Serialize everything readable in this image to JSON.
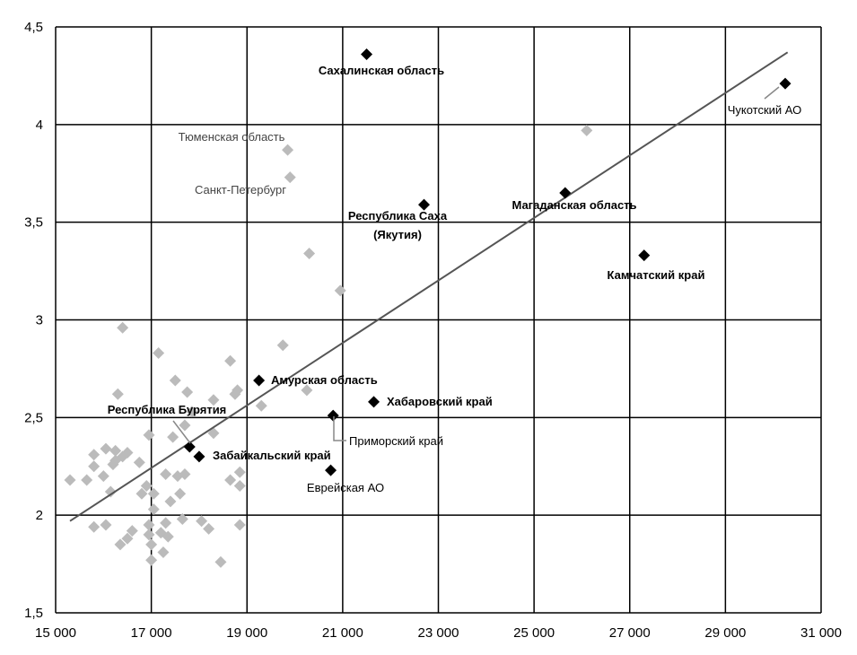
{
  "chart_data": {
    "type": "scatter",
    "title": "",
    "xlabel": "",
    "ylabel": "",
    "xlim": [
      15000,
      31000
    ],
    "ylim": [
      1.5,
      4.5
    ],
    "x_ticks": [
      15000,
      17000,
      19000,
      21000,
      23000,
      25000,
      27000,
      29000,
      31000
    ],
    "x_tick_labels": [
      "15 000",
      "17 000",
      "19 000",
      "21 000",
      "23 000",
      "25 000",
      "27 000",
      "29 000",
      "31 000"
    ],
    "y_ticks": [
      1.5,
      2,
      2.5,
      3,
      3.5,
      4,
      4.5
    ],
    "y_tick_labels": [
      "1,5",
      "2",
      "2,5",
      "3",
      "3,5",
      "4",
      "4,5"
    ],
    "grid": true,
    "colors": {
      "highlighted": "#000000",
      "other": "#bbbbbb",
      "trendline": "#555555",
      "grid": "#000000"
    },
    "trendline": {
      "x": [
        15300,
        30300
      ],
      "y": [
        1.97,
        4.37
      ]
    },
    "highlighted_points": [
      {
        "label": "Сахалинская область",
        "x": 21500,
        "y": 4.36
      },
      {
        "label": "Чукотский АО",
        "x": 30250,
        "y": 4.21
      },
      {
        "label": "Республика Саха (Якутия)",
        "label_lines": [
          "Республика Саха",
          "(Якутия)"
        ],
        "x": 22700,
        "y": 3.59
      },
      {
        "label": "Магаданская область",
        "x": 25650,
        "y": 3.65
      },
      {
        "label": "Камчатский край",
        "x": 27300,
        "y": 3.33
      },
      {
        "label": "Амурская область",
        "x": 19250,
        "y": 2.69
      },
      {
        "label": "Хабаровский край",
        "x": 21650,
        "y": 2.58
      },
      {
        "label": "Приморский край",
        "x": 20800,
        "y": 2.51
      },
      {
        "label": "Республика Бурятия",
        "x": 17800,
        "y": 2.35
      },
      {
        "label": "Забайкальский край",
        "x": 18000,
        "y": 2.3
      },
      {
        "label": "Еврейская АО",
        "x": 20750,
        "y": 2.23
      }
    ],
    "labeled_other_points": [
      {
        "label": "Тюменская область",
        "x": 19850,
        "y": 3.87
      },
      {
        "label": "Санкт-Петербург",
        "x": 19900,
        "y": 3.73
      }
    ],
    "other_points": [
      [
        15300,
        2.18
      ],
      [
        15650,
        2.18
      ],
      [
        15800,
        2.31
      ],
      [
        15800,
        2.25
      ],
      [
        15800,
        1.94
      ],
      [
        16000,
        2.2
      ],
      [
        16050,
        2.34
      ],
      [
        16050,
        1.95
      ],
      [
        16150,
        2.12
      ],
      [
        16200,
        2.26
      ],
      [
        16250,
        2.33
      ],
      [
        16250,
        2.28
      ],
      [
        16300,
        2.62
      ],
      [
        16350,
        1.85
      ],
      [
        16400,
        2.3
      ],
      [
        16400,
        2.96
      ],
      [
        16500,
        1.88
      ],
      [
        16500,
        2.32
      ],
      [
        16600,
        1.92
      ],
      [
        16750,
        2.27
      ],
      [
        16800,
        2.11
      ],
      [
        16900,
        2.15
      ],
      [
        16950,
        1.9
      ],
      [
        16950,
        1.95
      ],
      [
        16950,
        2.41
      ],
      [
        17000,
        1.77
      ],
      [
        17000,
        1.85
      ],
      [
        17050,
        2.03
      ],
      [
        17050,
        2.11
      ],
      [
        17150,
        2.83
      ],
      [
        17200,
        1.91
      ],
      [
        17250,
        1.81
      ],
      [
        17300,
        1.96
      ],
      [
        17300,
        2.21
      ],
      [
        17350,
        1.89
      ],
      [
        17400,
        2.07
      ],
      [
        17450,
        2.4
      ],
      [
        17500,
        2.69
      ],
      [
        17550,
        2.2
      ],
      [
        17600,
        2.11
      ],
      [
        17650,
        1.98
      ],
      [
        17700,
        2.21
      ],
      [
        17700,
        2.46
      ],
      [
        17750,
        2.63
      ],
      [
        17850,
        2.53
      ],
      [
        18050,
        1.97
      ],
      [
        18200,
        1.93
      ],
      [
        18300,
        2.42
      ],
      [
        18300,
        2.59
      ],
      [
        18450,
        1.76
      ],
      [
        18650,
        2.18
      ],
      [
        18650,
        2.79
      ],
      [
        18750,
        2.62
      ],
      [
        18800,
        2.64
      ],
      [
        18850,
        1.95
      ],
      [
        18850,
        2.22
      ],
      [
        18850,
        2.15
      ],
      [
        19300,
        2.56
      ],
      [
        19750,
        2.87
      ],
      [
        20250,
        2.64
      ],
      [
        20300,
        3.34
      ],
      [
        20950,
        3.15
      ],
      [
        26100,
        3.97
      ]
    ]
  }
}
